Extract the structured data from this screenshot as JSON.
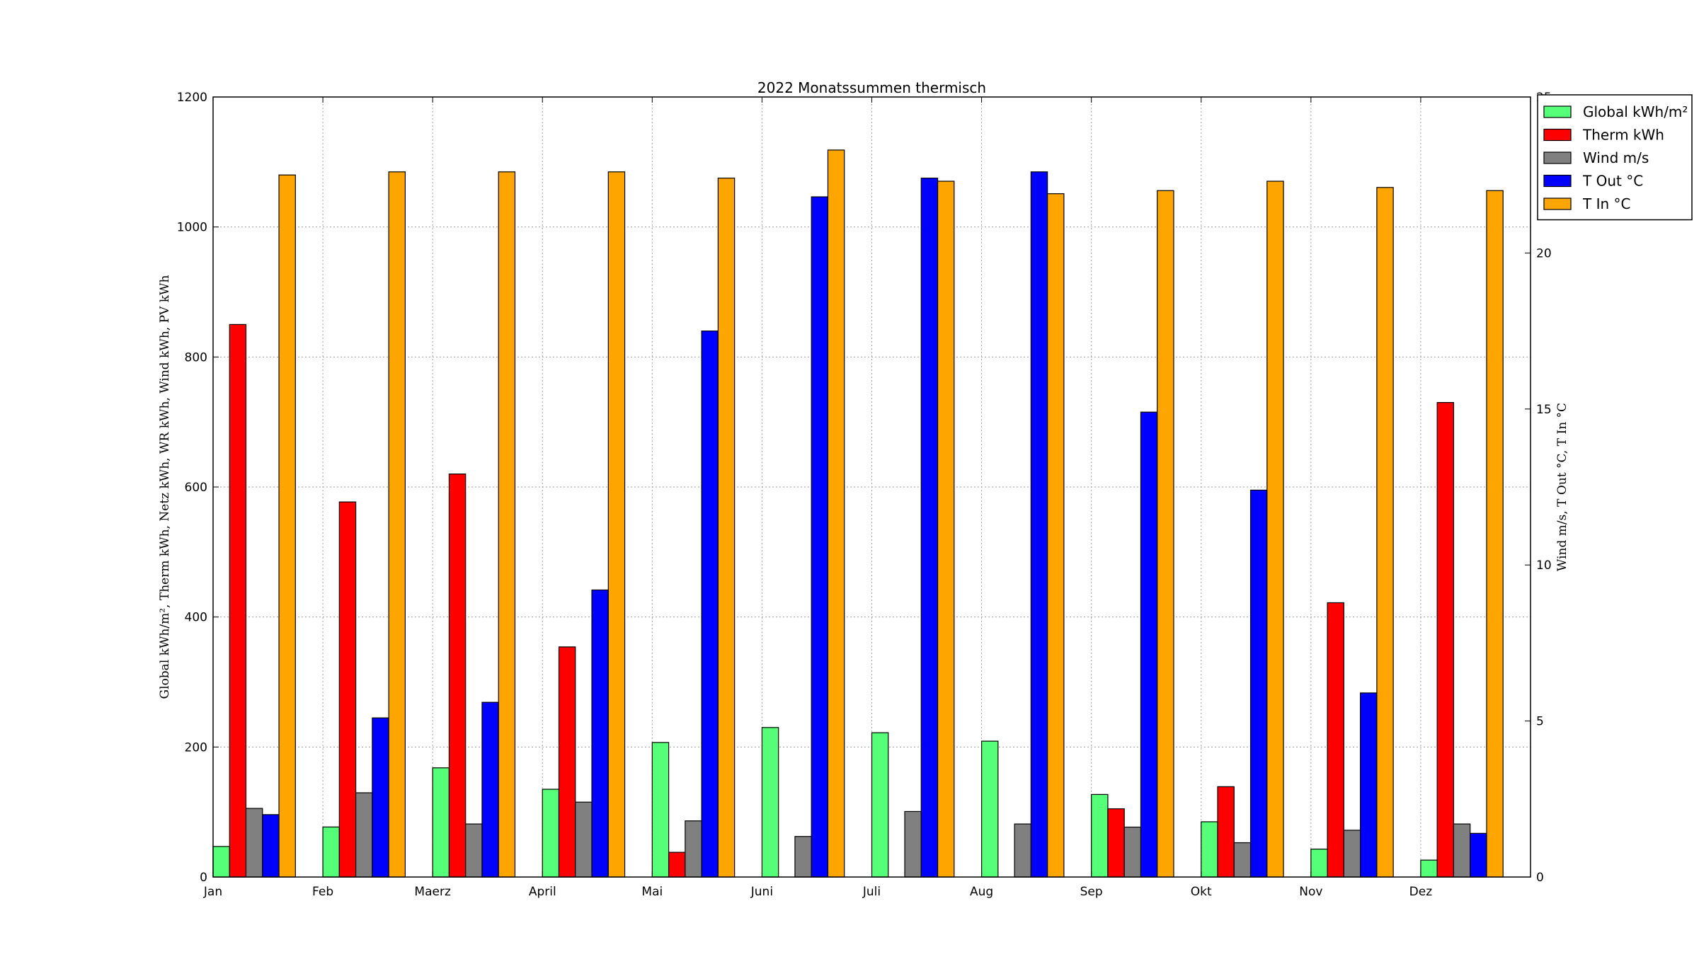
{
  "chart_data": {
    "type": "bar",
    "title": "2022 Monatssummen thermisch",
    "ylabel_left": "Global kWh/m², Therm kWh, Netz kWh, WR kWh, Wind kWh, PV kWh",
    "ylabel_right": "Wind m/s, T Out °C, T In °C",
    "categories": [
      "Jan",
      "Feb",
      "Maerz",
      "April",
      "Mai",
      "Juni",
      "Juli",
      "Aug",
      "Sep",
      "Okt",
      "Nov",
      "Dez"
    ],
    "ylim_left": [
      0,
      1200
    ],
    "ylim_right": [
      0,
      25
    ],
    "yticks_left": [
      "0",
      "200",
      "400",
      "600",
      "800",
      "1000",
      "1200"
    ],
    "yticks_right": [
      "0",
      "5",
      "10",
      "15",
      "20",
      "25"
    ],
    "grid": true,
    "legend_position": "upper right, outside plot",
    "series": [
      {
        "name": "Global kWh/m²",
        "axis": "left",
        "color": "#55ff77",
        "values": [
          47,
          77,
          168,
          135,
          207,
          230,
          222,
          209,
          127,
          85,
          43,
          26
        ]
      },
      {
        "name": "Therm kWh",
        "axis": "left",
        "color": "#ff0000",
        "values": [
          850,
          577,
          620,
          354,
          38,
          0,
          0,
          0,
          105,
          139,
          422,
          730
        ]
      },
      {
        "name": "Wind m/s",
        "axis": "right",
        "color": "#808080",
        "values": [
          2.2,
          2.7,
          1.7,
          2.4,
          1.8,
          1.3,
          2.1,
          1.7,
          1.6,
          1.1,
          1.5,
          1.7
        ]
      },
      {
        "name": "T Out °C",
        "axis": "right",
        "color": "#0000ff",
        "values": [
          2.0,
          5.1,
          5.6,
          9.2,
          17.5,
          21.8,
          22.4,
          22.6,
          14.9,
          12.4,
          5.9,
          1.4
        ]
      },
      {
        "name": "T In °C",
        "axis": "right",
        "color": "#ffa500",
        "values": [
          22.5,
          22.6,
          22.6,
          22.6,
          22.4,
          23.3,
          22.3,
          21.9,
          22.0,
          22.3,
          22.1,
          22.0
        ]
      }
    ]
  }
}
